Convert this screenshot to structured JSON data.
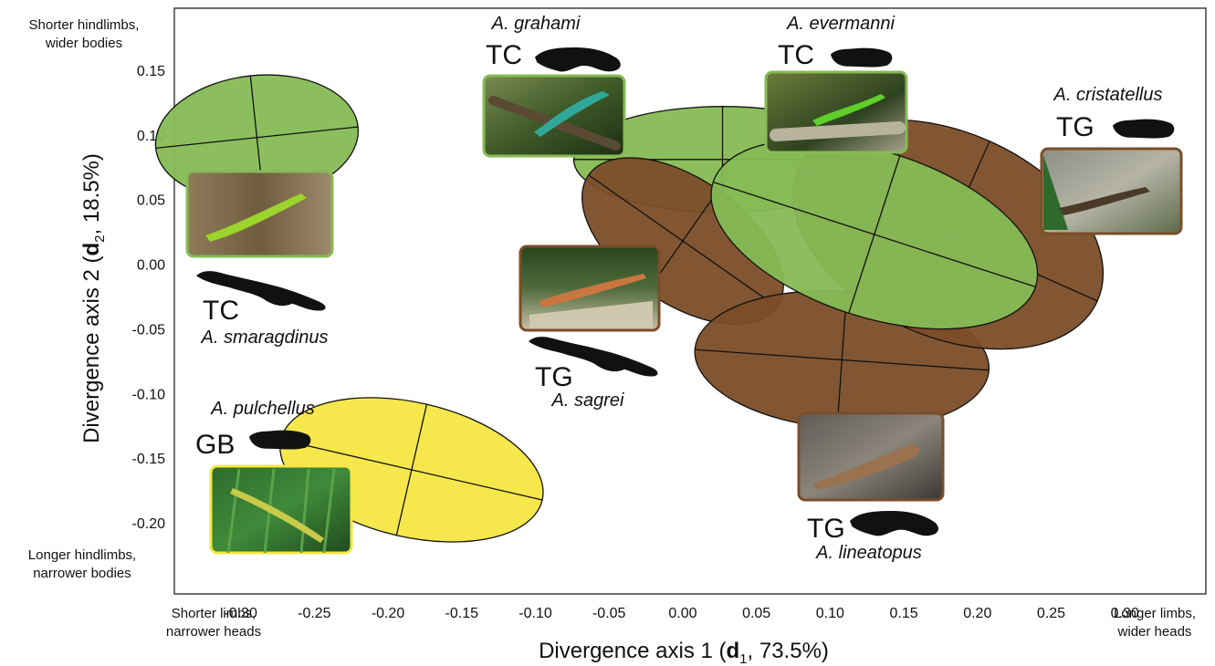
{
  "chart_data": {
    "type": "scatter",
    "subtype": "confidence-ellipses",
    "xlabel": {
      "pre": "Divergence axis 1 (",
      "bold": "d",
      "sub": "1",
      "post": ", 73.5%)"
    },
    "ylabel": {
      "pre": "Divergence axis 2  (",
      "bold": "d",
      "sub": "2",
      "post": ", 18.5%)"
    },
    "x_ticks": [
      -0.3,
      -0.25,
      -0.2,
      -0.15,
      -0.1,
      -0.05,
      0.0,
      0.05,
      0.1,
      0.15,
      0.2,
      0.25,
      0.3
    ],
    "x_tick_labels": [
      "-0.30",
      "-0.25",
      "-0.20",
      "-0.15",
      "-0.10",
      "-0.05",
      "0.00",
      "0.05",
      "0.10",
      "0.15",
      "0.20",
      "0.25",
      "0.30"
    ],
    "y_ticks": [
      0.15,
      0.1,
      0.05,
      0.0,
      -0.05,
      -0.1,
      -0.15,
      -0.2
    ],
    "y_tick_labels": [
      "0.15",
      "0.10",
      "0.05",
      "0.00",
      "-0.05",
      "-0.10",
      "-0.15",
      "-0.20"
    ],
    "xlim": [
      -0.345,
      0.355
    ],
    "ylim": [
      -0.255,
      0.198
    ],
    "grid": false,
    "corner_labels": {
      "y_top": [
        "Shorter hindlimbs,",
        "wider bodies"
      ],
      "y_bottom": [
        "Longer hindlimbs,",
        "narrower bodies"
      ],
      "x_left": [
        "Shorter limbs,",
        "narrower heads"
      ],
      "x_right": [
        "Longer limbs,",
        "wider heads"
      ]
    },
    "colors": {
      "tc": "#86bb55",
      "tg": "#7b4d28",
      "gb": "#f5e643"
    },
    "ellipses": [
      {
        "species": "A. smaragdinus",
        "ecomorph": "TC",
        "color": "#86bb55",
        "cx": -0.289,
        "cy": 0.098,
        "rx": 0.069,
        "ry": 0.048,
        "angle": -6
      },
      {
        "species": "A. pulchellus",
        "ecomorph": "GB",
        "color": "#f5e643",
        "cx": -0.184,
        "cy": -0.159,
        "rx": 0.091,
        "ry": 0.052,
        "angle": 13
      },
      {
        "species": "A. grahami",
        "ecomorph": "TC",
        "color": "#86bb55",
        "cx": 0.027,
        "cy": 0.081,
        "rx": 0.101,
        "ry": 0.041,
        "angle": 0
      },
      {
        "species": "A. sagrei",
        "ecomorph": "TG",
        "color": "#7b4d28",
        "cx": 0.0,
        "cy": 0.018,
        "rx": 0.078,
        "ry": 0.048,
        "angle": 35
      },
      {
        "species": "A. lineatopus",
        "ecomorph": "TG",
        "color": "#7b4d28",
        "cx": 0.108,
        "cy": -0.074,
        "rx": 0.1,
        "ry": 0.053,
        "angle": 4
      },
      {
        "species": "A. cristatellus",
        "ecomorph": "TG",
        "color": "#7b4d28",
        "cx": 0.18,
        "cy": 0.023,
        "rx": 0.111,
        "ry": 0.079,
        "angle": 24
      },
      {
        "species": "A. evermanni",
        "ecomorph": "TC",
        "color": "#86bb55",
        "cx": 0.13,
        "cy": 0.023,
        "rx": 0.115,
        "ry": 0.064,
        "angle": 18
      }
    ]
  },
  "annotations": {
    "grahami": {
      "name": "A. grahami",
      "eco": "TC"
    },
    "evermanni": {
      "name": "A. evermanni",
      "eco": "TC"
    },
    "cristatellus": {
      "name": "A. cristatellus",
      "eco": "TG"
    },
    "smaragdinus": {
      "name": "A. smaragdinus",
      "eco": "TC"
    },
    "sagrei": {
      "name": "A. sagrei",
      "eco": "TG"
    },
    "pulchellus": {
      "name": "A. pulchellus",
      "eco": "GB"
    },
    "lineatopus": {
      "name": "A. lineatopus",
      "eco": "TG"
    }
  },
  "icons": {
    "photo": "lizard-photo",
    "island_cuba": "cuba-silhouette-icon",
    "island_jamaica": "jamaica-silhouette-icon",
    "island_puerto_rico": "puerto-rico-silhouette-icon"
  }
}
